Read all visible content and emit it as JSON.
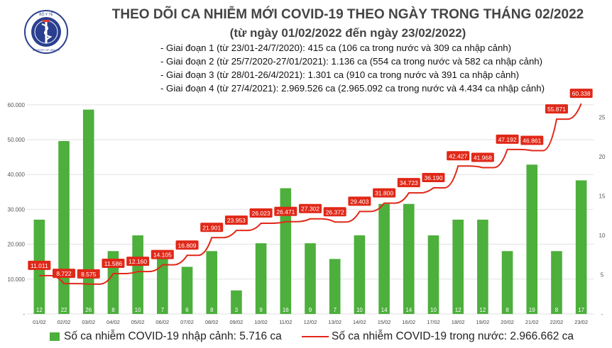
{
  "logo": {
    "top_text": "BỘ Y TẾ",
    "bottom_text": "MINISTRY OF HEALTH"
  },
  "title": "THEO DÕI CA NHIỄM MỚI COVID-19 THEO NGÀY TRONG THÁNG 02/2022",
  "subtitle": "(từ ngày 01/02/2022 đến ngày 23/02/2022)",
  "info_lines": [
    "- Giai đoạn 1 (từ 23/01-24/7/2020): 415 ca (106 ca trong nước và 309 ca nhập cảnh)",
    "- Giai đoạn 2 (từ 25/7/2020-27/01/2021): 1.136 ca (554 ca trong nước và 582 ca nhập cảnh)",
    "- Giai đoạn 3 (từ 28/01-26/4/2021): 1.301 ca (910 ca trong nước và 391 ca nhập cảnh)",
    "- Giai đoạn 4 (từ 27/4/2021): 2.969.526 ca (2.965.092 ca trong nước và 4.434 ca nhập cảnh)"
  ],
  "colors": {
    "bar": "#4daf3c",
    "line": "#e02818",
    "label_box": "#e02818",
    "grid": "#e0e0e0"
  },
  "chart_data": {
    "type": "bar+line",
    "categories": [
      "01/02",
      "02/02",
      "03/02",
      "04/02",
      "05/02",
      "06/02",
      "07/02",
      "08/02",
      "09/02",
      "10/02",
      "11/02",
      "12/02",
      "13/02",
      "14/02",
      "15/02",
      "16/02",
      "17/02",
      "18/02",
      "19/02",
      "20/02",
      "21/02",
      "22/02",
      "23/02"
    ],
    "series": [
      {
        "name": "Số ca nhiễm COVID-19 nhập cảnh: 5.716 ca",
        "type": "bar",
        "axis": "right",
        "values": [
          12,
          22,
          26,
          8,
          10,
          7,
          6,
          8,
          3,
          9,
          16,
          9,
          7,
          10,
          14,
          14,
          10,
          12,
          12,
          8,
          19,
          8,
          17
        ]
      },
      {
        "name": "Số ca nhiễm COVID-19 trong nước: 2.966.662 ca",
        "type": "line",
        "axis": "left",
        "values": [
          11011,
          8722,
          8575,
          11586,
          12160,
          14105,
          16809,
          21901,
          23953,
          26023,
          26471,
          27302,
          26372,
          29403,
          31800,
          34723,
          36190,
          42427,
          41968,
          47192,
          46861,
          55871,
          60338
        ],
        "labels": [
          "11.011",
          "8.722",
          "8.575",
          "11.586",
          "12.160",
          "14.105",
          "16.809",
          "21.901",
          "23.953",
          "26.023",
          "26.471",
          "27.302",
          "26.372",
          "29.403",
          "31.800",
          "34.723",
          "36.190",
          "42.427",
          "41.968",
          "47.192",
          "46.861",
          "55.871",
          "60.338"
        ]
      }
    ],
    "y_left": {
      "ticks": [
        0,
        10000,
        20000,
        30000,
        40000,
        50000,
        60000
      ],
      "tick_labels": [
        "-",
        "10.000",
        "20.000",
        "30.000",
        "40.000",
        "50.000",
        "60.000"
      ],
      "lim": [
        0,
        62000
      ]
    },
    "y_right": {
      "ticks": [
        0,
        5,
        10,
        15,
        20,
        25
      ],
      "tick_labels": [
        "-",
        "5",
        "10",
        "15",
        "20",
        "25"
      ],
      "lim": [
        0,
        27.5
      ]
    },
    "grid": true,
    "legend": "bottom"
  }
}
